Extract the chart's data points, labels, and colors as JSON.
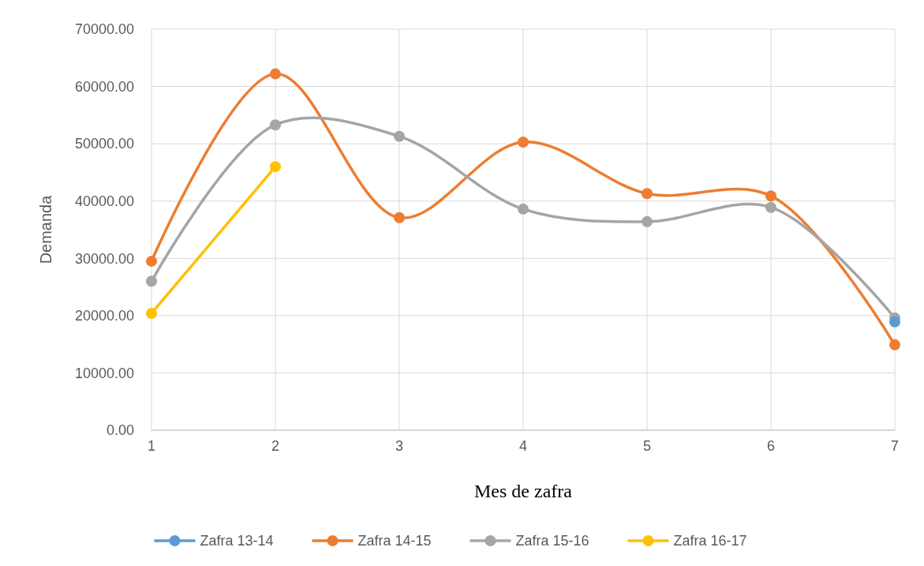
{
  "chart_data": {
    "type": "line",
    "xlabel": "Mes de zafra",
    "ylabel": "Demanda",
    "x": [
      1,
      2,
      3,
      4,
      5,
      6,
      7
    ],
    "xlim": [
      1,
      7
    ],
    "xticks": [
      1,
      2,
      3,
      4,
      5,
      6,
      7
    ],
    "ylim": [
      0,
      70000
    ],
    "yticks": [
      {
        "value": 0,
        "label": "0.00"
      },
      {
        "value": 10000,
        "label": "10000.00"
      },
      {
        "value": 20000,
        "label": "20000.00"
      },
      {
        "value": 30000,
        "label": "30000.00"
      },
      {
        "value": 40000,
        "label": "40000.00"
      },
      {
        "value": 50000,
        "label": "50000.00"
      },
      {
        "value": 60000,
        "label": "60000.00"
      },
      {
        "value": 70000,
        "label": "70000.00"
      }
    ],
    "grid": true,
    "legend": "bottom",
    "marker": "circle",
    "line_style": "solid",
    "series": [
      {
        "name": "Zafra 13-14",
        "color": "#5b9bd5",
        "values": [
          null,
          null,
          null,
          null,
          null,
          null,
          18900
        ]
      },
      {
        "name": "Zafra 14-15",
        "color": "#ed7d31",
        "values": [
          29500,
          62200,
          37100,
          50300,
          41300,
          40900,
          14900
        ]
      },
      {
        "name": "Zafra 15-16",
        "color": "#a5a5a5",
        "values": [
          26000,
          53300,
          51300,
          38600,
          36400,
          38900,
          19600
        ]
      },
      {
        "name": "Zafra 16-17",
        "color": "#ffc000",
        "values": [
          20400,
          46000,
          null,
          null,
          null,
          null,
          null
        ]
      }
    ]
  }
}
